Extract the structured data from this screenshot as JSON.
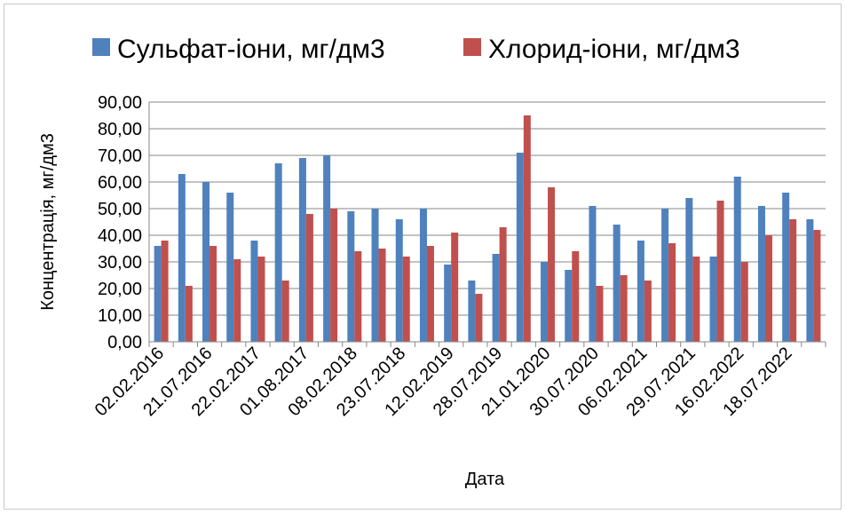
{
  "chart_data": {
    "type": "bar",
    "title": "",
    "xlabel": "Дата",
    "ylabel": "Концентрація, мг/дм3",
    "ylim": [
      0,
      90
    ],
    "y_ticks": [
      "0,00",
      "10,00",
      "20,00",
      "30,00",
      "40,00",
      "50,00",
      "60,00",
      "70,00",
      "80,00",
      "90,00"
    ],
    "y_tick_values": [
      0,
      10,
      20,
      30,
      40,
      50,
      60,
      70,
      80,
      90
    ],
    "grid": true,
    "legend_position": "top",
    "x_tick_labels": [
      "02.02.2016",
      "21.07.2016",
      "22.02.2017",
      "01.08.2017",
      "08.02.2018",
      "23.07.2018",
      "12.02.2019",
      "28.07.2019",
      "21.01.2020",
      "30.07.2020",
      "06.02.2021",
      "29.07.2021",
      "16.02.2022",
      "18.07.2022"
    ],
    "category_count": 28,
    "series": [
      {
        "name": "Сульфат-іони, мг/дм3",
        "color": "#4F81BD",
        "values": [
          36,
          63,
          60,
          56,
          38,
          67,
          69,
          70,
          49,
          50,
          46,
          50,
          29,
          23,
          33,
          71,
          30,
          27,
          51,
          44,
          38,
          50,
          54,
          32,
          62,
          51,
          56,
          46
        ]
      },
      {
        "name": "Хлорид-іони, мг/дм3",
        "color": "#C0504D",
        "values": [
          38,
          21,
          36,
          31,
          32,
          23,
          48,
          50,
          34,
          35,
          32,
          36,
          41,
          18,
          43,
          85,
          58,
          34,
          21,
          25,
          23,
          37,
          32,
          53,
          30,
          40,
          46,
          42
        ]
      }
    ]
  }
}
